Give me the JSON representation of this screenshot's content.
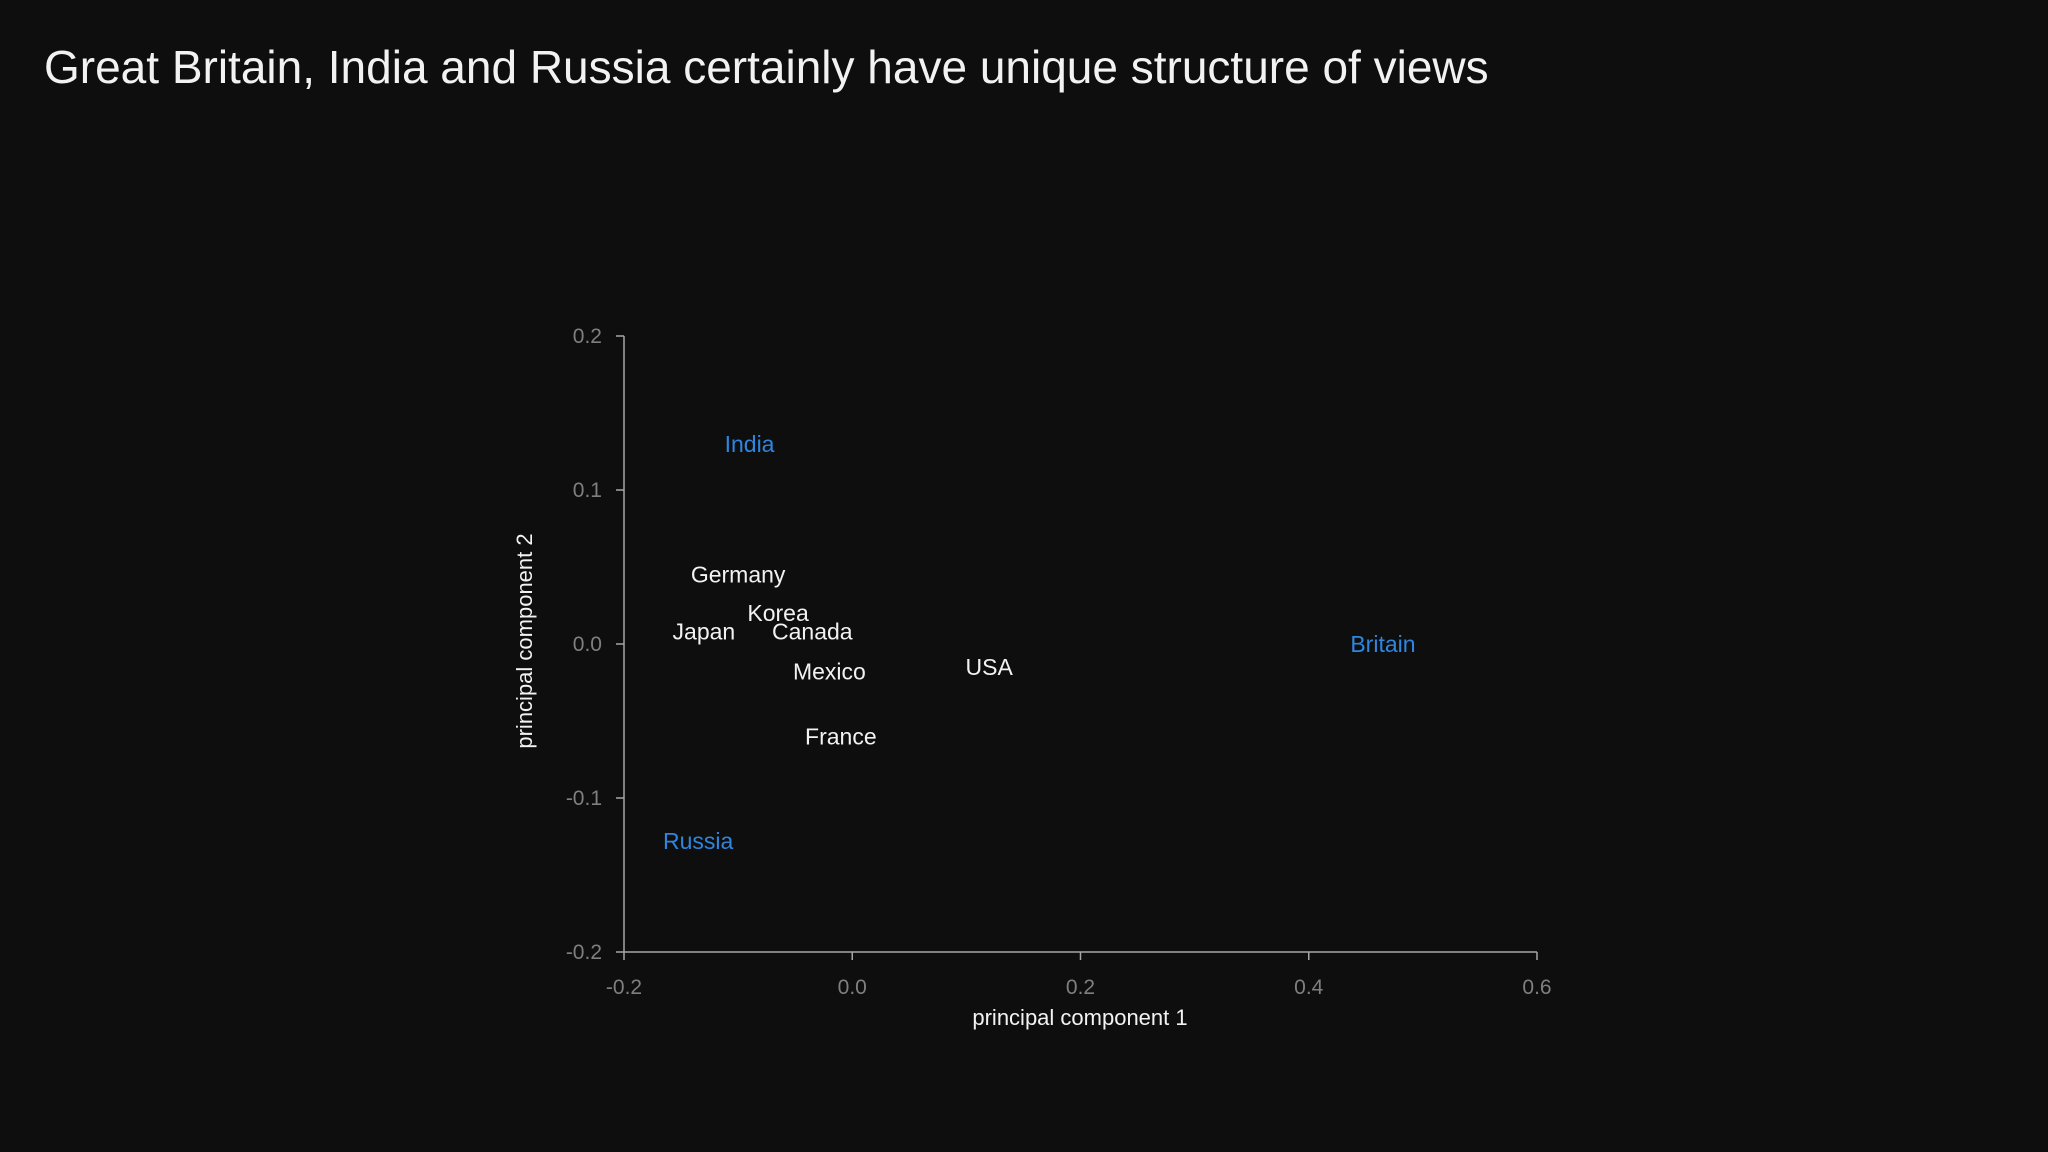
{
  "slide": {
    "title": "Great Britain, India and Russia certainly have unique structure of views"
  },
  "colors": {
    "background": "#0e0e0f",
    "text": "#f2f2f2",
    "highlight": "#2e86de",
    "tick": "#7f7f7f",
    "axis": "#a6a6a6"
  },
  "chart_data": {
    "type": "scatter",
    "title": "",
    "xlabel": "principal component 1",
    "ylabel": "principal component 2",
    "xlim": [
      -0.2,
      0.6
    ],
    "ylim": [
      -0.2,
      0.2
    ],
    "xticks": [
      "-0.2",
      "0.0",
      "0.2",
      "0.4",
      "0.6"
    ],
    "xtick_values": [
      -0.2,
      0.0,
      0.2,
      0.4,
      0.6
    ],
    "yticks": [
      "0.2",
      "0.1",
      "0.0",
      "-0.1",
      "-0.2"
    ],
    "ytick_values": [
      0.2,
      0.1,
      0.0,
      -0.1,
      -0.2
    ],
    "grid": false,
    "legend": "none",
    "points": [
      {
        "label": "India",
        "x": -0.09,
        "y": 0.13,
        "highlight": true
      },
      {
        "label": "Germany",
        "x": -0.1,
        "y": 0.045,
        "highlight": false
      },
      {
        "label": "Korea",
        "x": -0.065,
        "y": 0.02,
        "highlight": false
      },
      {
        "label": "Japan",
        "x": -0.13,
        "y": 0.008,
        "highlight": false
      },
      {
        "label": "Canada",
        "x": -0.035,
        "y": 0.008,
        "highlight": false
      },
      {
        "label": "Mexico",
        "x": -0.02,
        "y": -0.018,
        "highlight": false
      },
      {
        "label": "USA",
        "x": 0.12,
        "y": -0.015,
        "highlight": false
      },
      {
        "label": "France",
        "x": -0.01,
        "y": -0.06,
        "highlight": false
      },
      {
        "label": "Britain",
        "x": 0.465,
        "y": 0.0,
        "highlight": true
      },
      {
        "label": "Russia",
        "x": -0.135,
        "y": -0.128,
        "highlight": true
      }
    ]
  }
}
